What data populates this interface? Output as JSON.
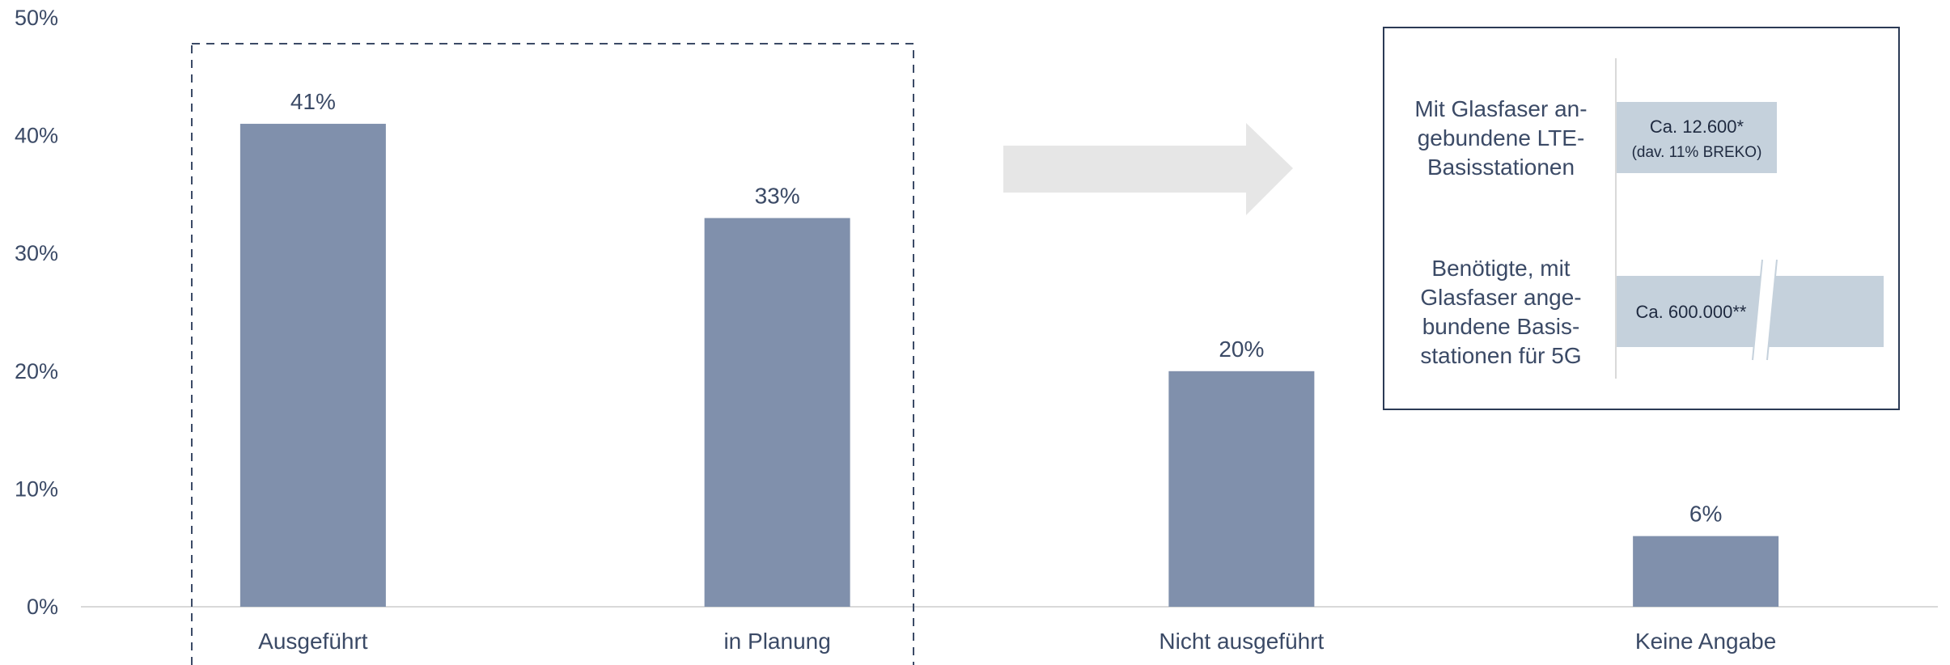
{
  "chart_data": {
    "type": "bar",
    "categories": [
      "Ausgeführt",
      "in Planung",
      "Nicht ausgeführt",
      "Keine Angabe"
    ],
    "values": [
      41,
      33,
      20,
      6
    ],
    "value_labels": [
      "41%",
      "33%",
      "20%",
      "6%"
    ],
    "ylim": [
      0,
      50
    ],
    "yticks": [
      {
        "value": 0,
        "label": "0%"
      },
      {
        "value": 10,
        "label": "10%"
      },
      {
        "value": 20,
        "label": "20%"
      },
      {
        "value": 30,
        "label": "30%"
      },
      {
        "value": 40,
        "label": "40%"
      },
      {
        "value": 50,
        "label": "50%"
      }
    ],
    "grid": false,
    "bar_color": "#8090AC",
    "axis_color": "#D9D9D9",
    "text_color": "#3B4A66"
  },
  "callout": {
    "rows": [
      {
        "label_lines": [
          "Mit Glasfaser an-",
          "gebundene LTE-",
          "Basisstationen"
        ],
        "value_lines": [
          "Ca. 12.600*",
          "(dav. 11% BREKO)"
        ],
        "value_fraction": 0.6
      },
      {
        "label_lines": [
          "Benötigte, mit",
          "Glasfaser ange-",
          "bundene Basis-",
          "stationen für 5G"
        ],
        "value_lines": [
          "Ca. 600.000**"
        ],
        "value_fraction": 1.0,
        "axis_break": true
      }
    ],
    "bar_color": "#C5D1DC",
    "border_color": "#2B3A55"
  },
  "arrow_color": "#E6E6E6"
}
